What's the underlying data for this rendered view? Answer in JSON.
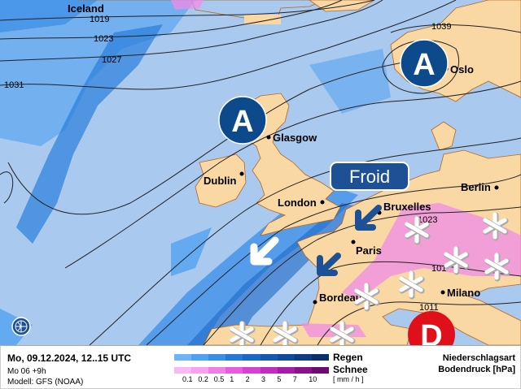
{
  "map": {
    "cities": [
      {
        "name": "Iceland"
      },
      {
        "name": "Oslo"
      },
      {
        "name": "Glasgow"
      },
      {
        "name": "Dublin"
      },
      {
        "name": "London"
      },
      {
        "name": "Bruxelles"
      },
      {
        "name": "Berlin"
      },
      {
        "name": "Paris"
      },
      {
        "name": "Bordeaux"
      },
      {
        "name": "Milano"
      }
    ],
    "isobars": [
      "1019",
      "1023",
      "1027",
      "1031",
      "1039",
      "1023",
      "101",
      "1011"
    ],
    "pressure_centers": [
      {
        "label": "A",
        "type": "high",
        "color": "#0d4a8c"
      },
      {
        "label": "A",
        "type": "high",
        "color": "#0d4a8c"
      },
      {
        "label": "D",
        "type": "low",
        "color": "#e0101a"
      }
    ],
    "front_label": "Froid",
    "icons": [
      "snowflake-icon",
      "arrow-southwest-icon",
      "globe-icon"
    ],
    "colors": {
      "ocean": "#a9c9ef",
      "land": "#fad8a4",
      "rain_light": "#64aaf0",
      "rain_mid": "#2a7fdc",
      "snow": "#f08ce8"
    }
  },
  "legend": {
    "datetime": "Mo, 09.12.2024, 12..15 UTC",
    "run": "Mo 06 +9h",
    "model": "Modell: GFS (NOAA)",
    "rain_label": "Regen",
    "snow_label": "Schnee",
    "unit": "[ mm / h ]",
    "ticks": [
      "0.1",
      "0.2",
      "0.5",
      "1",
      "2",
      "3",
      "5",
      "7",
      "10"
    ],
    "rain_colors": [
      "#6db4f8",
      "#4ea0f0",
      "#3a8ee8",
      "#2479d8",
      "#1a68c6",
      "#1558b0",
      "#104a9c",
      "#0c3c86",
      "#0a2f6a"
    ],
    "snow_colors": [
      "#fbb8f4",
      "#f9a0f0",
      "#f27ce8",
      "#e85ae0",
      "#d840d4",
      "#c22cc0",
      "#a81aa8",
      "#8c108e",
      "#6e0a70"
    ],
    "precip_type_title": "Niederschlagsart",
    "pressure_title": "Bodendruck [hPa]"
  }
}
